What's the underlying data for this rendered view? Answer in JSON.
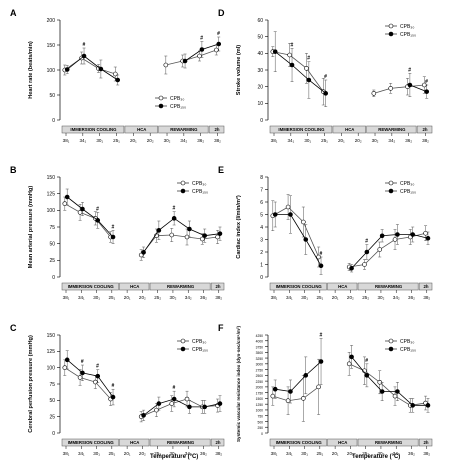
{
  "figure": {
    "x_axis_title": "Temperature (°C)"
  },
  "chart_data": [
    {
      "panel": "A",
      "type": "line",
      "ylabel": "Heart rate (beats/min)",
      "ylim": [
        0,
        200
      ],
      "yticks": [
        0,
        50,
        100,
        150,
        200
      ],
      "x": [
        "38₁",
        "34₁",
        "30₁",
        "25₁",
        "20₁",
        "20₂",
        "30₂",
        "34₂",
        "36₂",
        "38₂"
      ],
      "tick_labels": [
        "38₁",
        "34₁",
        "30₁",
        "25₁",
        "20₁",
        "20₂",
        "30₂",
        "34₂",
        "36₂",
        "38₂"
      ],
      "legend": [
        "CPB₃₀",
        "CPB₁₅₀"
      ],
      "legend_pos": "lower-right",
      "phases": [
        "IMMERSION COOLING",
        "HCA",
        "REWARMING",
        "2h"
      ],
      "series": [
        {
          "name": "CPB₃₀",
          "marker": "open",
          "values": [
            100,
            124,
            103,
            92,
            null,
            null,
            110,
            118,
            128,
            140
          ],
          "err": [
            10,
            12,
            8,
            14,
            null,
            null,
            18,
            12,
            10,
            10
          ]
        },
        {
          "name": "CPB₁₅₀",
          "marker": "filled",
          "values": [
            101,
            128,
            102,
            80,
            null,
            null,
            null,
            118,
            141,
            152
          ],
          "err": [
            8,
            16,
            18,
            10,
            null,
            null,
            null,
            14,
            16,
            14
          ]
        }
      ],
      "annotations": [
        {
          "text": "#",
          "at": 1,
          "series": 1
        },
        {
          "text": "#",
          "at": 8,
          "series": 1
        },
        {
          "text": "#",
          "at": 9,
          "series": 1
        }
      ]
    },
    {
      "panel": "D",
      "type": "line",
      "ylabel": "Stroke volume (ml)",
      "ylim": [
        0,
        60
      ],
      "yticks": [
        0,
        10,
        20,
        30,
        40,
        50,
        60
      ],
      "x": [
        "38₁",
        "34₁",
        "30₁",
        "25₁",
        "20₁",
        "20₂",
        "30₂",
        "34₂",
        "36₂",
        "38₂"
      ],
      "tick_labels": [
        "38₁",
        "34₁",
        "30₁",
        "25₁",
        "20₁",
        "20₂",
        "30₂",
        "34₂",
        "36₂",
        "38₂"
      ],
      "legend": [
        "CPB₃₀",
        "CPB₁₅₀"
      ],
      "legend_pos": "top-right",
      "phases": [
        "IMMERSION COOLING",
        "HCA",
        "REWARMING",
        "2h"
      ],
      "series": [
        {
          "name": "CPB₃₀",
          "marker": "open",
          "values": [
            41,
            39,
            31,
            17,
            null,
            null,
            16,
            19,
            20,
            21
          ],
          "err": [
            3,
            7,
            9,
            8,
            null,
            null,
            2,
            3,
            5,
            5
          ]
        },
        {
          "name": "CPB₁₅₀",
          "marker": "filled",
          "values": [
            41,
            33,
            24,
            16,
            null,
            null,
            null,
            null,
            21,
            17
          ],
          "err": [
            12,
            10,
            11,
            8,
            null,
            null,
            null,
            null,
            7,
            4
          ]
        }
      ],
      "annotations": [
        {
          "text": "#",
          "at": 1,
          "series": 1
        },
        {
          "text": "#",
          "at": 2,
          "series": 1
        },
        {
          "text": "#",
          "at": 3,
          "series": 1
        },
        {
          "text": "#",
          "at": 8,
          "series": 1
        },
        {
          "text": "#",
          "at": 9,
          "series": 1
        }
      ]
    },
    {
      "panel": "B",
      "type": "line",
      "ylabel": "Mean arterial pressure (mmHg)",
      "ylim": [
        0,
        150
      ],
      "yticks": [
        0,
        25,
        50,
        75,
        100,
        125,
        150
      ],
      "x": [
        "38₁",
        "34₁",
        "30₁",
        "25₁",
        "20₁",
        "20₂",
        "25₂",
        "30₂",
        "34₂",
        "36₂",
        "38₂"
      ],
      "tick_labels": [
        "38₁",
        "34₁",
        "30₁",
        "25₁",
        "20₁",
        "20₂",
        "25₂",
        "30₂",
        "34₂",
        "36₂",
        "38₂"
      ],
      "legend": [
        "CPB₃₀",
        "CPB₁₅₀"
      ],
      "legend_pos": "top-right",
      "phases": [
        "IMMERSION COOLING",
        "HCA",
        "REWARMING",
        "2h"
      ],
      "series": [
        {
          "name": "CPB₃₀",
          "marker": "open",
          "values": [
            110,
            97,
            88,
            60,
            null,
            33,
            62,
            63,
            60,
            57,
            60
          ],
          "err": [
            10,
            12,
            10,
            8,
            null,
            8,
            10,
            10,
            12,
            8,
            10
          ]
        },
        {
          "name": "CPB₁₅₀",
          "marker": "filled",
          "values": [
            120,
            102,
            85,
            60,
            null,
            37,
            70,
            88,
            72,
            62,
            65
          ],
          "err": [
            12,
            10,
            12,
            10,
            null,
            8,
            14,
            10,
            12,
            10,
            10
          ]
        }
      ],
      "annotations": [
        {
          "text": "#",
          "at": 2,
          "series": 1
        },
        {
          "text": "#",
          "at": 3,
          "series": 1
        },
        {
          "text": "#",
          "at": 7,
          "series": 1
        }
      ]
    },
    {
      "panel": "E",
      "type": "line",
      "ylabel": "Cardiac index (l/min/m²)",
      "ylim": [
        0,
        8
      ],
      "yticks": [
        0,
        1,
        2,
        3,
        4,
        5,
        6,
        7,
        8
      ],
      "x": [
        "38₁",
        "34₁",
        "30₁",
        "25₁",
        "20₁",
        "20₂",
        "25₂",
        "30₂",
        "34₂",
        "36₂",
        "38₂"
      ],
      "tick_labels": [
        "38₁",
        "34₁",
        "30₁",
        "25₁",
        "20₁",
        "20₂",
        "25₂",
        "30₂",
        "34₂",
        "36₂",
        "38₂"
      ],
      "legend": [
        "CPB₃₀",
        "CPB₁₅₀"
      ],
      "legend_pos": "top-right",
      "phases": [
        "IMMERSION COOLING",
        "HCA",
        "REWARMING",
        "2h"
      ],
      "series": [
        {
          "name": "CPB₃₀",
          "marker": "open",
          "values": [
            4.9,
            5.6,
            4.4,
            1.6,
            null,
            0.8,
            1.0,
            2.2,
            3.0,
            3.2,
            3.5
          ],
          "err": [
            1.2,
            1.0,
            1.2,
            0.8,
            null,
            0.3,
            0.4,
            0.6,
            0.8,
            0.6,
            0.6
          ]
        },
        {
          "name": "CPB₁₅₀",
          "marker": "filled",
          "values": [
            5.0,
            5.0,
            3.0,
            0.9,
            null,
            0.7,
            2.0,
            3.3,
            3.4,
            3.4,
            3.1
          ],
          "err": [
            1.0,
            1.5,
            1.2,
            0.7,
            null,
            0.3,
            0.6,
            0.5,
            0.8,
            0.6,
            0.5
          ]
        }
      ],
      "annotations": [
        {
          "text": "#",
          "at": 3,
          "series": 1
        },
        {
          "text": "#",
          "at": 6,
          "series": 1
        }
      ]
    },
    {
      "panel": "C",
      "type": "line",
      "ylabel": "Cerebral perfusion pressure (mmHg)",
      "ylim": [
        0,
        150
      ],
      "yticks": [
        0,
        25,
        50,
        75,
        100,
        125,
        150
      ],
      "x": [
        "38₁",
        "34₁",
        "30₁",
        "25₁",
        "20₁",
        "20₂",
        "25₂",
        "30₂",
        "34₂",
        "36₂",
        "38₂"
      ],
      "tick_labels": [
        "38₁",
        "34₁",
        "30₁",
        "25₁",
        "20₁",
        "20₂",
        "25₂",
        "30₂",
        "34₂",
        "36₂",
        "38₂"
      ],
      "legend": [
        "CPB₃₀",
        "CPB₁₅₀"
      ],
      "legend_pos": "top-right",
      "phases": [
        "IMMERSION COOLING",
        "HCA",
        "REWARMING",
        "2h"
      ],
      "series": [
        {
          "name": "CPB₃₀",
          "marker": "open",
          "values": [
            100,
            85,
            78,
            52,
            null,
            25,
            35,
            45,
            52,
            40,
            42
          ],
          "err": [
            12,
            12,
            10,
            10,
            null,
            8,
            10,
            12,
            12,
            10,
            10
          ]
        },
        {
          "name": "CPB₁₅₀",
          "marker": "filled",
          "values": [
            112,
            92,
            87,
            55,
            null,
            27,
            45,
            52,
            40,
            40,
            45
          ],
          "err": [
            14,
            12,
            10,
            12,
            null,
            8,
            10,
            12,
            10,
            10,
            12
          ]
        }
      ],
      "annotations": [
        {
          "text": "#",
          "at": 1,
          "series": 1
        },
        {
          "text": "#",
          "at": 2,
          "series": 1
        },
        {
          "text": "#",
          "at": 3,
          "series": 1
        },
        {
          "text": "#",
          "at": 7,
          "series": 1
        }
      ]
    },
    {
      "panel": "F",
      "type": "line",
      "ylabel": "Systemic vascular resistance index (dyn·sec/cm⁵/m²)",
      "ylim": [
        0,
        4250
      ],
      "yticks": [
        0,
        250,
        500,
        750,
        1000,
        1250,
        1500,
        1750,
        2000,
        2250,
        2500,
        2750,
        3000,
        3250,
        3500,
        3750,
        4000,
        4250
      ],
      "x": [
        "38₁",
        "34₁",
        "30₁",
        "25₁",
        "20₁",
        "20₂",
        "25₂",
        "30₂",
        "34₂",
        "36₂",
        "38₂"
      ],
      "tick_labels": [
        "38₁",
        "34₁",
        "30₁",
        "25₁",
        "20₁",
        "20₂",
        "25₂",
        "30₂",
        "34₂",
        "36₂",
        "38₂"
      ],
      "legend": [
        "CPB₃₀",
        "CPB₁₅₀"
      ],
      "legend_pos": "top-right",
      "phases": [
        "IMMERSION COOLING",
        "HCA",
        "REWARMING",
        "2h"
      ],
      "series": [
        {
          "name": "CPB₃₀",
          "marker": "open",
          "values": [
            1600,
            1400,
            1500,
            2000,
            null,
            3000,
            2700,
            2200,
            1600,
            1200,
            1300
          ],
          "err": [
            400,
            600,
            1000,
            1200,
            null,
            500,
            600,
            500,
            400,
            300,
            300
          ]
        },
        {
          "name": "CPB₁₅₀",
          "marker": "filled",
          "values": [
            1900,
            1800,
            2500,
            3100,
            null,
            3300,
            2500,
            1800,
            1800,
            1200,
            1200
          ],
          "err": [
            400,
            500,
            800,
            1000,
            null,
            500,
            500,
            400,
            400,
            300,
            300
          ]
        }
      ],
      "annotations": [
        {
          "text": "#",
          "at": 3,
          "series": 1
        },
        {
          "text": "#",
          "at": 6,
          "series": 1
        }
      ]
    }
  ]
}
